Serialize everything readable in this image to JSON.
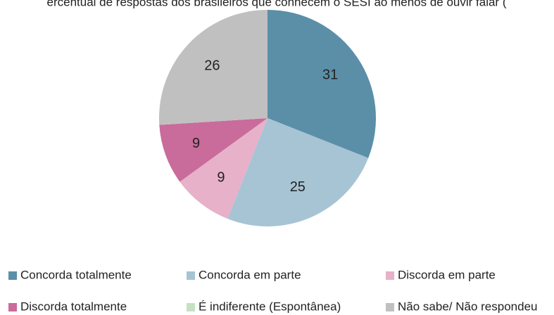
{
  "chart_data": {
    "type": "pie",
    "title": "ercentual de respostas dos brasileiros que conhecem o SESI ao menos de ouvir falar (",
    "categories": [
      "Concorda totalmente",
      "Concorda em parte",
      "Discorda em parte",
      "Discorda totalmente",
      "É indiferente (Espontânea)",
      "Não sabe/ Não respondeu"
    ],
    "values": [
      31,
      25,
      9,
      9,
      0,
      26
    ],
    "colors": [
      "#5b8fa8",
      "#a6c4d4",
      "#e6b1c9",
      "#c96b9b",
      "#c3e2c1",
      "#c0c0c0"
    ]
  }
}
